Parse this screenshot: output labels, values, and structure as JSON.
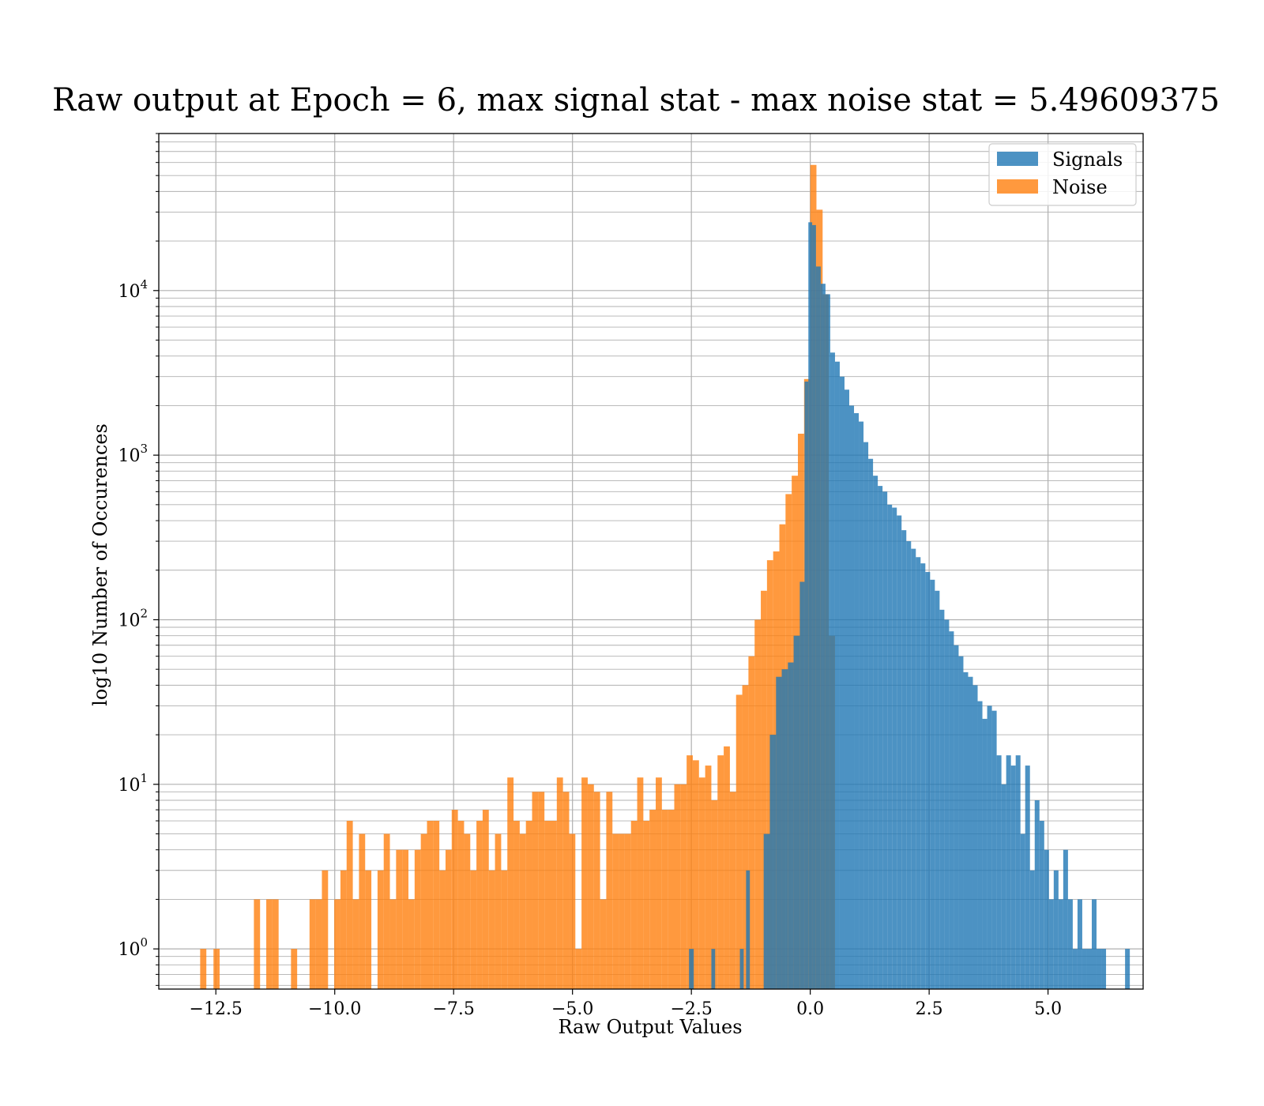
{
  "chart_data": {
    "type": "histogram",
    "title": "Raw output at Epoch = 6, max signal stat - max noise stat = 5.49609375",
    "xlabel": "Raw Output Values",
    "ylabel": "log10 Number of Occurences",
    "xlim": [
      -13.7,
      7.0
    ],
    "ylim": [
      0.57,
      90000
    ],
    "yscale": "log",
    "grid": true,
    "legend_position": "top-right",
    "xticks": [
      {
        "value": -12.5,
        "label": "−12.5"
      },
      {
        "value": -10.0,
        "label": "−10.0"
      },
      {
        "value": -7.5,
        "label": "−7.5"
      },
      {
        "value": -5.0,
        "label": "−5.0"
      },
      {
        "value": -2.5,
        "label": "−2.5"
      },
      {
        "value": 0.0,
        "label": "0.0"
      },
      {
        "value": 2.5,
        "label": "2.5"
      },
      {
        "value": 5.0,
        "label": "5.0"
      }
    ],
    "yticks": [
      {
        "value": 1,
        "base": "10",
        "exp": "0"
      },
      {
        "value": 10,
        "base": "10",
        "exp": "1"
      },
      {
        "value": 100,
        "base": "10",
        "exp": "2"
      },
      {
        "value": 1000,
        "base": "10",
        "exp": "3"
      },
      {
        "value": 10000,
        "base": "10",
        "exp": "4"
      }
    ],
    "series": [
      {
        "name": "Signals",
        "color": "#1f77b4",
        "bins": [
          [
            -2.55,
            -2.45,
            1
          ],
          [
            -2.08,
            -2.0,
            1
          ],
          [
            -1.48,
            -1.4,
            1
          ],
          [
            -1.35,
            -1.27,
            3
          ],
          [
            -0.98,
            -0.85,
            5
          ],
          [
            -0.85,
            -0.72,
            20
          ],
          [
            -0.72,
            -0.6,
            45
          ],
          [
            -0.6,
            -0.47,
            50
          ],
          [
            -0.47,
            -0.35,
            55
          ],
          [
            -0.35,
            -0.22,
            80
          ],
          [
            -0.22,
            -0.12,
            170
          ],
          [
            -0.12,
            -0.04,
            2800
          ],
          [
            -0.04,
            0.04,
            26000
          ],
          [
            0.04,
            0.12,
            25000
          ],
          [
            0.12,
            0.22,
            14000
          ],
          [
            0.22,
            0.32,
            11000
          ],
          [
            0.32,
            0.42,
            9500
          ],
          [
            0.42,
            0.52,
            4200
          ],
          [
            0.52,
            0.62,
            3700
          ],
          [
            0.62,
            0.72,
            3000
          ],
          [
            0.72,
            0.82,
            2500
          ],
          [
            0.82,
            0.92,
            2000
          ],
          [
            0.92,
            1.02,
            1800
          ],
          [
            1.02,
            1.12,
            1600
          ],
          [
            1.12,
            1.22,
            1200
          ],
          [
            1.22,
            1.32,
            950
          ],
          [
            1.32,
            1.42,
            750
          ],
          [
            1.42,
            1.52,
            650
          ],
          [
            1.52,
            1.62,
            600
          ],
          [
            1.62,
            1.72,
            500
          ],
          [
            1.72,
            1.82,
            480
          ],
          [
            1.82,
            1.92,
            430
          ],
          [
            1.92,
            2.02,
            350
          ],
          [
            2.02,
            2.12,
            300
          ],
          [
            2.12,
            2.22,
            270
          ],
          [
            2.22,
            2.32,
            240
          ],
          [
            2.32,
            2.42,
            220
          ],
          [
            2.42,
            2.52,
            195
          ],
          [
            2.52,
            2.62,
            175
          ],
          [
            2.62,
            2.72,
            150
          ],
          [
            2.72,
            2.82,
            115
          ],
          [
            2.82,
            2.92,
            100
          ],
          [
            2.92,
            3.02,
            85
          ],
          [
            3.02,
            3.12,
            70
          ],
          [
            3.12,
            3.22,
            60
          ],
          [
            3.22,
            3.32,
            48
          ],
          [
            3.32,
            3.42,
            45
          ],
          [
            3.42,
            3.52,
            40
          ],
          [
            3.52,
            3.62,
            32
          ],
          [
            3.62,
            3.72,
            25
          ],
          [
            3.72,
            3.82,
            30
          ],
          [
            3.82,
            3.92,
            28
          ],
          [
            3.92,
            4.02,
            15
          ],
          [
            4.02,
            4.12,
            10
          ],
          [
            4.12,
            4.22,
            15
          ],
          [
            4.22,
            4.32,
            13
          ],
          [
            4.32,
            4.42,
            15
          ],
          [
            4.42,
            4.52,
            5
          ],
          [
            4.52,
            4.62,
            13
          ],
          [
            4.62,
            4.72,
            3
          ],
          [
            4.72,
            4.82,
            8
          ],
          [
            4.82,
            4.92,
            6
          ],
          [
            4.92,
            5.02,
            4
          ],
          [
            5.02,
            5.12,
            2
          ],
          [
            5.12,
            5.22,
            3
          ],
          [
            5.22,
            5.32,
            2
          ],
          [
            5.32,
            5.42,
            4
          ],
          [
            5.42,
            5.52,
            2
          ],
          [
            5.52,
            5.62,
            1
          ],
          [
            5.62,
            5.72,
            2
          ],
          [
            5.72,
            5.82,
            1
          ],
          [
            5.82,
            5.92,
            1
          ],
          [
            5.92,
            6.02,
            2
          ],
          [
            6.02,
            6.12,
            1
          ],
          [
            6.12,
            6.22,
            1
          ],
          [
            6.62,
            6.72,
            1
          ]
        ]
      },
      {
        "name": "Noise",
        "color": "#ff7f0e",
        "bins": [
          [
            -12.83,
            -12.7,
            1
          ],
          [
            -12.55,
            -12.42,
            1
          ],
          [
            -11.7,
            -11.57,
            2
          ],
          [
            -11.44,
            -11.31,
            2
          ],
          [
            -11.31,
            -11.18,
            2
          ],
          [
            -10.92,
            -10.79,
            1
          ],
          [
            -10.53,
            -10.4,
            2
          ],
          [
            -10.4,
            -10.27,
            2
          ],
          [
            -10.27,
            -10.14,
            3
          ],
          [
            -10.01,
            -9.88,
            2
          ],
          [
            -9.88,
            -9.75,
            3
          ],
          [
            -9.75,
            -9.62,
            6
          ],
          [
            -9.62,
            -9.49,
            2
          ],
          [
            -9.49,
            -9.36,
            5
          ],
          [
            -9.36,
            -9.23,
            3
          ],
          [
            -9.1,
            -8.97,
            3
          ],
          [
            -8.97,
            -8.84,
            5
          ],
          [
            -8.84,
            -8.71,
            2
          ],
          [
            -8.71,
            -8.58,
            4
          ],
          [
            -8.58,
            -8.45,
            4
          ],
          [
            -8.45,
            -8.32,
            2
          ],
          [
            -8.32,
            -8.19,
            4
          ],
          [
            -8.19,
            -8.06,
            5
          ],
          [
            -8.06,
            -7.93,
            6
          ],
          [
            -7.93,
            -7.8,
            6
          ],
          [
            -7.8,
            -7.67,
            3
          ],
          [
            -7.67,
            -7.54,
            4
          ],
          [
            -7.54,
            -7.41,
            7
          ],
          [
            -7.41,
            -7.28,
            6
          ],
          [
            -7.28,
            -7.15,
            5
          ],
          [
            -7.15,
            -7.02,
            3
          ],
          [
            -7.02,
            -6.89,
            6
          ],
          [
            -6.89,
            -6.76,
            7
          ],
          [
            -6.76,
            -6.63,
            3
          ],
          [
            -6.63,
            -6.5,
            5
          ],
          [
            -6.5,
            -6.37,
            3
          ],
          [
            -6.37,
            -6.24,
            11
          ],
          [
            -6.24,
            -6.11,
            6
          ],
          [
            -6.11,
            -5.98,
            5
          ],
          [
            -5.98,
            -5.85,
            6
          ],
          [
            -5.85,
            -5.72,
            9
          ],
          [
            -5.72,
            -5.59,
            9
          ],
          [
            -5.59,
            -5.46,
            6
          ],
          [
            -5.46,
            -5.33,
            6
          ],
          [
            -5.33,
            -5.2,
            11
          ],
          [
            -5.2,
            -5.07,
            9
          ],
          [
            -5.07,
            -4.94,
            5
          ],
          [
            -4.94,
            -4.81,
            1
          ],
          [
            -4.81,
            -4.68,
            11
          ],
          [
            -4.68,
            -4.55,
            10
          ],
          [
            -4.55,
            -4.42,
            9
          ],
          [
            -4.42,
            -4.29,
            2
          ],
          [
            -4.29,
            -4.16,
            9
          ],
          [
            -4.16,
            -4.03,
            5
          ],
          [
            -4.03,
            -3.9,
            5
          ],
          [
            -3.9,
            -3.77,
            5
          ],
          [
            -3.77,
            -3.64,
            6
          ],
          [
            -3.64,
            -3.51,
            11
          ],
          [
            -3.51,
            -3.38,
            6
          ],
          [
            -3.38,
            -3.25,
            7
          ],
          [
            -3.25,
            -3.12,
            11
          ],
          [
            -3.12,
            -2.99,
            7
          ],
          [
            -2.99,
            -2.86,
            7
          ],
          [
            -2.86,
            -2.73,
            10
          ],
          [
            -2.73,
            -2.6,
            10
          ],
          [
            -2.6,
            -2.47,
            15
          ],
          [
            -2.47,
            -2.34,
            14
          ],
          [
            -2.34,
            -2.21,
            11
          ],
          [
            -2.21,
            -2.08,
            13
          ],
          [
            -2.08,
            -1.95,
            8
          ],
          [
            -1.95,
            -1.82,
            15
          ],
          [
            -1.82,
            -1.69,
            17
          ],
          [
            -1.69,
            -1.56,
            9
          ],
          [
            -1.56,
            -1.43,
            35
          ],
          [
            -1.43,
            -1.3,
            40
          ],
          [
            -1.3,
            -1.17,
            60
          ],
          [
            -1.17,
            -1.04,
            100
          ],
          [
            -1.04,
            -0.91,
            150
          ],
          [
            -0.91,
            -0.78,
            230
          ],
          [
            -0.78,
            -0.65,
            260
          ],
          [
            -0.65,
            -0.52,
            380
          ],
          [
            -0.52,
            -0.39,
            580
          ],
          [
            -0.39,
            -0.26,
            750
          ],
          [
            -0.26,
            -0.13,
            1350
          ],
          [
            -0.13,
            0.0,
            2900
          ],
          [
            0.0,
            0.13,
            58000
          ],
          [
            0.13,
            0.26,
            31000
          ],
          [
            0.26,
            0.39,
            9500
          ],
          [
            0.39,
            0.52,
            80
          ]
        ]
      }
    ]
  }
}
